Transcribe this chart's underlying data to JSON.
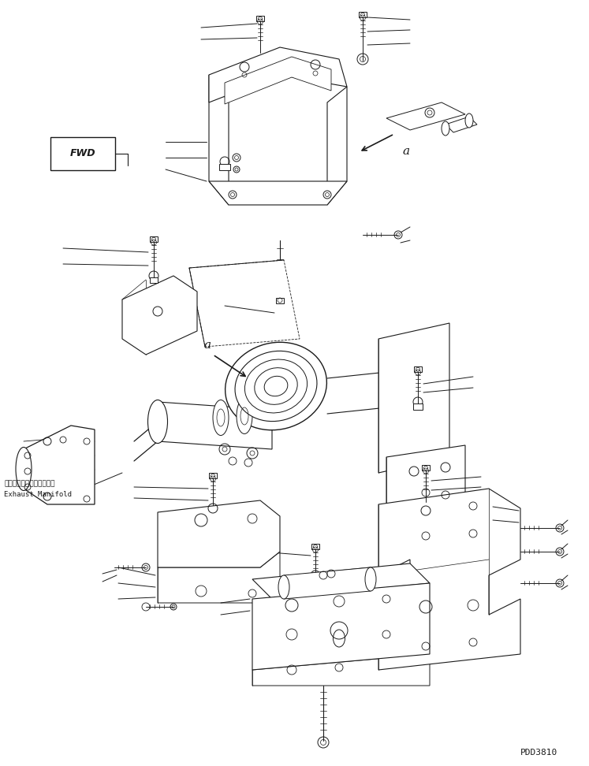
{
  "background_color": "#ffffff",
  "line_color": "#1a1a1a",
  "fig_width": 7.47,
  "fig_height": 9.72,
  "dpi": 100,
  "watermark": "PDD3810",
  "fwd_label": "FWD",
  "exhaust_label_jp": "エキゾーストマニホールド",
  "exhaust_label_en": "Exhaust Manifold"
}
